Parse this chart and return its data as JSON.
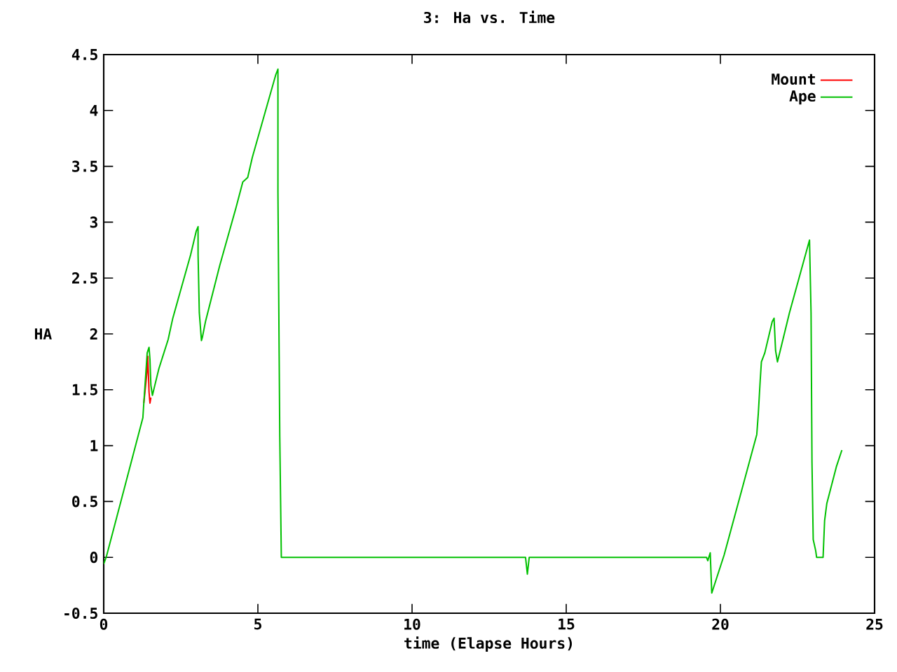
{
  "chart_data": {
    "type": "line",
    "title": "3: Ha vs. Time",
    "xlabel": "time (Elapse Hours)",
    "ylabel": "HA",
    "xlim": [
      0,
      25
    ],
    "ylim": [
      -0.5,
      4.5
    ],
    "xticks": [
      0,
      5,
      10,
      15,
      20,
      25
    ],
    "yticks": [
      -0.5,
      0,
      0.5,
      1,
      1.5,
      2,
      2.5,
      3,
      3.5,
      4,
      4.5
    ],
    "grid": false,
    "legend": "top right",
    "marker": "none",
    "line_style": "solid",
    "series": [
      {
        "name": "Mount",
        "color": "#ff0000",
        "x": [
          1.3,
          1.4,
          1.43,
          1.47,
          1.5,
          1.53
        ],
        "values": [
          1.38,
          1.65,
          1.8,
          1.48,
          1.38,
          1.43
        ]
      },
      {
        "name": "Ape",
        "color": "#00c000",
        "x": [
          0,
          0.09,
          1.27,
          1.3,
          1.41,
          1.47,
          1.5,
          1.53,
          1.58,
          1.64,
          1.79,
          2.09,
          2.24,
          2.82,
          3.0,
          3.06,
          3.06,
          3.1,
          3.17,
          3.2,
          3.3,
          3.76,
          4.29,
          4.51,
          4.67,
          4.82,
          5.2,
          5.58,
          5.65,
          5.65,
          5.71,
          5.76,
          13.68,
          13.74,
          13.8,
          19.55,
          19.59,
          19.67,
          19.72,
          20.12,
          20.73,
          21.18,
          21.23,
          21.29,
          21.33,
          21.44,
          21.68,
          21.74,
          21.79,
          21.85,
          21.94,
          22.24,
          22.7,
          22.89,
          22.94,
          22.97,
          23.01,
          23.09,
          23.12,
          23.33,
          23.38,
          23.45,
          23.76,
          23.94
        ],
        "values": [
          -0.06,
          0.01,
          1.25,
          1.38,
          1.83,
          1.88,
          1.77,
          1.54,
          1.45,
          1.52,
          1.69,
          1.95,
          2.14,
          2.71,
          2.92,
          2.96,
          2.71,
          2.19,
          1.94,
          1.97,
          2.11,
          2.61,
          3.13,
          3.36,
          3.4,
          3.58,
          3.95,
          4.32,
          4.37,
          3.27,
          1.08,
          0,
          0,
          -0.15,
          0,
          0,
          -0.03,
          0.04,
          -0.32,
          0.02,
          0.64,
          1.1,
          1.29,
          1.58,
          1.75,
          1.83,
          2.11,
          2.14,
          1.85,
          1.75,
          1.85,
          2.19,
          2.65,
          2.84,
          2.19,
          0.85,
          0.16,
          0.06,
          0,
          0,
          0.33,
          0.48,
          0.81,
          0.96
        ]
      }
    ]
  }
}
